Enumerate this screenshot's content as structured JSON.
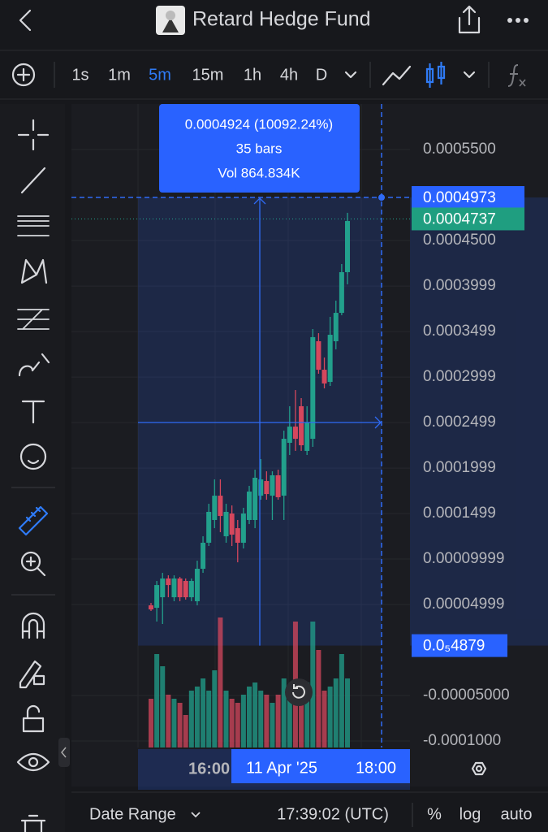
{
  "header": {
    "title": "Retard Hedge Fund"
  },
  "toolbar": {
    "intervals": [
      "1s",
      "1m",
      "5m",
      "15m",
      "1h",
      "4h",
      "D"
    ],
    "active_interval": 2
  },
  "chart_data": {
    "type": "candlestick",
    "series": {
      "open": [
        4.91e-05,
        4.64e-05,
        5.8e-05,
        7.86e-05,
        5.8e-05,
        7.86e-05,
        7.59e-05,
        5.8e-05,
        5.36e-05,
        8.93e-05,
        0.0001179,
        0.0001429,
        0.0001696,
        0.000125,
        0.00015,
        0.0001339,
        0.0001179,
        0.0001429,
        0.0001429,
        0.0001696,
        0.0001857,
        0.0001696,
        0.000192,
        0.0001696,
        0.0002277,
        0.0002455,
        0.0002679,
        0.0002188,
        0.0002321,
        0.0003393,
        0.000308,
        0.0002946,
        0.0003393,
        0.0003705,
        0.0004152
      ],
      "high": [
        5.18e-05,
        7.59e-05,
        8.48e-05,
        8.21e-05,
        8.21e-05,
        8.04e-05,
        7.86e-05,
        7.86e-05,
        9.82e-05,
        0.000125,
        0.0001607,
        0.0001875,
        0.0001875,
        0.0001607,
        0.0001589,
        0.0001429,
        0.0001563,
        0.0001804,
        0.0001982,
        0.0002098,
        0.0001964,
        0.0001964,
        0.0001982,
        0.0002411,
        0.0002679,
        0.0002857,
        0.0002768,
        0.0002679,
        0.0003527,
        0.0003482,
        0.0003214,
        0.0003661,
        0.0003839,
        0.0004241,
        0.0004804
      ],
      "low": [
        4.29e-05,
        3.13e-05,
        2.86e-05,
        5.8e-05,
        5.36e-05,
        5.36e-05,
        5.54e-05,
        5.36e-05,
        4.91e-05,
        8.48e-05,
        0.0001143,
        0.0001339,
        0.0001295,
        0.0001179,
        0.0001143,
        9.64e-05,
        0.0001116,
        0.0001384,
        0.0001339,
        0.0001652,
        0.0001652,
        0.0001429,
        0.0001652,
        0.0001429,
        0.0002143,
        0.0002188,
        0.0002188,
        0.0002143,
        0.0002232,
        0.0003036,
        0.0002875,
        0.0002902,
        0.0003304,
        0.0003679,
        0.0004018
      ],
      "close": [
        4.46e-05,
        7.14e-05,
        7.86e-05,
        7.14e-05,
        7.86e-05,
        5.8e-05,
        5.8e-05,
        7.59e-05,
        8.93e-05,
        0.0001179,
        0.0001518,
        0.0001696,
        0.0001473,
        0.0001518,
        0.0001268,
        0.0001179,
        0.00015,
        0.0001741,
        0.0001893,
        0.0001875,
        0.0001714,
        0.000192,
        0.0001679,
        0.0002321,
        0.0002455,
        0.0002321,
        0.000225,
        0.00025,
        0.0003438,
        0.000308,
        0.0002929,
        0.0003464,
        0.0003705,
        0.0004152,
        0.0004714
      ]
    },
    "volume": [
      60,
      115,
      100,
      65,
      60,
      55,
      40,
      70,
      75,
      85,
      70,
      95,
      160,
      70,
      60,
      55,
      65,
      75,
      80,
      70,
      65,
      55,
      65,
      85,
      70,
      155,
      75,
      80,
      155,
      120,
      70,
      75,
      85,
      115,
      85
    ],
    "volume_ylim": [
      0,
      160
    ],
    "up_color": "#22a08c",
    "down_color": "#d5475d",
    "ylim": [
      -0.0001071,
      0.0005982
    ],
    "yticks": [
      {
        "value": 0.00055,
        "label": "0.0005500"
      },
      {
        "value": 0.00045,
        "label": "0.0004500"
      },
      0.0003999,
      0.0003499,
      0.0002999,
      0.0002499,
      0.0001999,
      0.0001499,
      9.999e-05,
      4.999e-05,
      {
        "value": -5e-05,
        "label": "-0.00005000"
      },
      {
        "value": -0.0001,
        "label": "-0.0001000"
      }
    ],
    "grid": true,
    "measure": {
      "top": 0.0004973,
      "bottom": {
        "value": 4.879e-06,
        "label": "0.0₅4879"
      },
      "change": "0.0004924 (10092.24%)",
      "bars": "35 bars",
      "volume": "Vol 864.834K"
    },
    "last_price": 0.0004737,
    "x_labels": [
      "16:00"
    ],
    "crosshair_date": "11 Apr '25",
    "crosshair_time": "18:00"
  },
  "status_bar": {
    "range": "Date Range",
    "time": "17:39:02 (UTC)",
    "percent": "%",
    "log": "log",
    "auto": "auto"
  }
}
